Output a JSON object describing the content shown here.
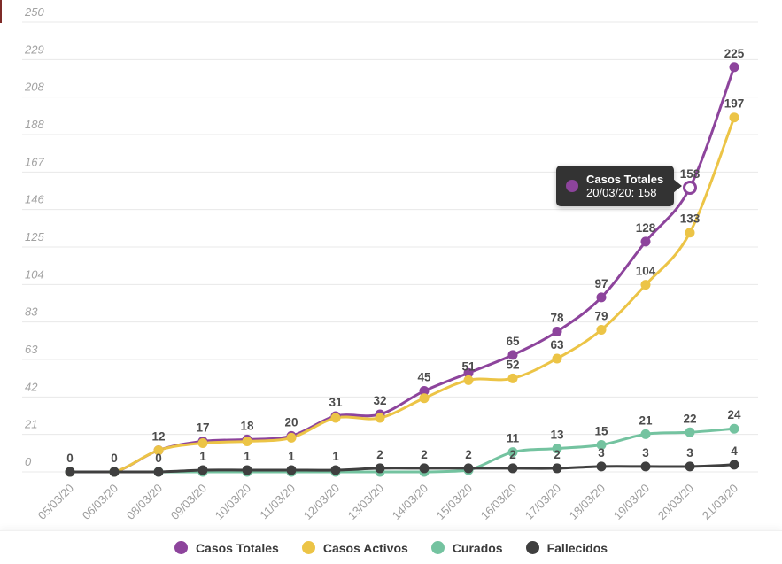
{
  "tooltip": {
    "title": "Casos Totales",
    "value_line": "20/03/20: 158",
    "color": "#8d449c"
  },
  "chart_data": {
    "type": "line",
    "title": "",
    "x_labels": [
      "05/03/20",
      "06/03/20",
      "08/03/20",
      "09/03/20",
      "10/03/20",
      "11/03/20",
      "12/03/20",
      "13/03/20",
      "14/03/20",
      "15/03/20",
      "16/03/20",
      "17/03/20",
      "18/03/20",
      "19/03/20",
      "20/03/20",
      "21/03/20"
    ],
    "y_axis": {
      "max": 250,
      "tick_labels": [
        "0",
        "21",
        "42",
        "63",
        "83",
        "104",
        "125",
        "146",
        "167",
        "188",
        "208",
        "229",
        "250"
      ]
    },
    "grid": "horizontal",
    "legend_position": "bottom",
    "series": [
      {
        "name": "Casos Totales",
        "color": "#8d449c",
        "values": [
          0,
          0,
          12,
          17,
          18,
          20,
          31,
          32,
          45,
          55,
          65,
          78,
          97,
          128,
          158,
          225
        ],
        "point_labels": [
          "0",
          "0",
          "12",
          "17",
          "18",
          "20",
          "31",
          "32",
          "45",
          null,
          "65",
          "78",
          "97",
          "128",
          "158",
          "225"
        ]
      },
      {
        "name": "Casos Activos",
        "color": "#ecc446",
        "values": [
          0,
          0,
          12,
          16,
          17,
          19,
          30,
          30,
          41,
          51,
          52,
          63,
          79,
          104,
          133,
          197
        ],
        "point_labels": [
          null,
          null,
          null,
          null,
          null,
          null,
          null,
          null,
          null,
          "51",
          "52",
          "63",
          "79",
          "104",
          "133",
          "197"
        ]
      },
      {
        "name": "Curados",
        "color": "#74c3a0",
        "values": [
          0,
          0,
          0,
          0,
          0,
          0,
          0,
          0,
          0,
          1,
          11,
          13,
          15,
          21,
          22,
          24
        ],
        "point_labels": [
          null,
          null,
          null,
          null,
          null,
          null,
          null,
          null,
          null,
          null,
          "11",
          "13",
          "15",
          "21",
          "22",
          "24"
        ]
      },
      {
        "name": "Fallecidos",
        "color": "#3f3f3f",
        "values": [
          0,
          0,
          0,
          1,
          1,
          1,
          1,
          2,
          2,
          2,
          2,
          2,
          3,
          3,
          3,
          4
        ],
        "point_labels": [
          null,
          null,
          "0",
          "1",
          "1",
          "1",
          "1",
          "2",
          "2",
          "2",
          "2",
          "2",
          "3",
          "3",
          "3",
          "4"
        ]
      }
    ],
    "highlight": {
      "series_index": 0,
      "point_index": 14,
      "value": 158
    }
  }
}
